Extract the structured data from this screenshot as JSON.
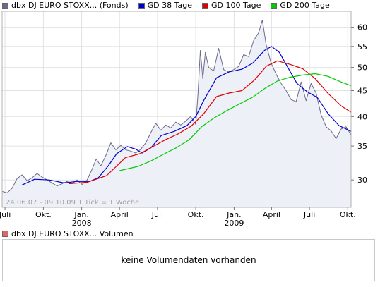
{
  "legend": [
    {
      "label": "dbx DJ EURO STOXX... (Fonds)",
      "color": "#6a6a8a"
    },
    {
      "label": "GD 38 Tage",
      "color": "#0000cc"
    },
    {
      "label": "GD 100 Tage",
      "color": "#dd0000"
    },
    {
      "label": "GD 200 Tage",
      "color": "#00cc00"
    }
  ],
  "chart_info": "24.06.07 - 09.10.09   1 Tick = 1 Woche",
  "volume": {
    "legend_label": "dbx DJ EURO STOXX... Volumen",
    "legend_color": "#dd6666",
    "empty_text": "keine Volumendaten vorhanden"
  },
  "chart_data": {
    "type": "line",
    "x_start": "2007-06-24",
    "x_end": "2009-10-09",
    "x_ticks": [
      {
        "date": "2007-07-01",
        "label": "Juli",
        "year": ""
      },
      {
        "date": "2007-10-01",
        "label": "Okt.",
        "year": ""
      },
      {
        "date": "2008-01-01",
        "label": "Jan.",
        "year": "2008"
      },
      {
        "date": "2008-04-01",
        "label": "April",
        "year": ""
      },
      {
        "date": "2008-07-01",
        "label": "Juli",
        "year": ""
      },
      {
        "date": "2008-10-01",
        "label": "Okt.",
        "year": ""
      },
      {
        "date": "2009-01-01",
        "label": "Jan.",
        "year": "2009"
      },
      {
        "date": "2009-04-01",
        "label": "April",
        "year": ""
      },
      {
        "date": "2009-07-01",
        "label": "Juli",
        "year": ""
      },
      {
        "date": "2009-10-01",
        "label": "Okt.",
        "year": ""
      }
    ],
    "y_scale": "log",
    "y_ticks": [
      30,
      35,
      40,
      45,
      50,
      55,
      60
    ],
    "y_range": [
      26.5,
      64.5
    ],
    "grid": true,
    "legend_position": "top",
    "series": [
      {
        "name": "dbx DJ EURO STOXX... (Fonds)",
        "color": "#6a6a8a",
        "area_fill": "#eef0f8",
        "points": [
          [
            "2007-06-24",
            28.5
          ],
          [
            "2007-07-06",
            28.3
          ],
          [
            "2007-07-18",
            28.9
          ],
          [
            "2007-07-30",
            30.2
          ],
          [
            "2007-08-11",
            30.7
          ],
          [
            "2007-08-23",
            29.9
          ],
          [
            "2007-09-04",
            30.3
          ],
          [
            "2007-09-16",
            30.9
          ],
          [
            "2007-09-28",
            30.4
          ],
          [
            "2007-10-10",
            30.0
          ],
          [
            "2007-10-22",
            29.6
          ],
          [
            "2007-11-03",
            29.2
          ],
          [
            "2007-11-15",
            29.5
          ],
          [
            "2007-11-27",
            29.8
          ],
          [
            "2007-12-09",
            29.5
          ],
          [
            "2007-12-21",
            30.0
          ],
          [
            "2008-01-02",
            29.4
          ],
          [
            "2008-01-14",
            30.0
          ],
          [
            "2008-01-26",
            31.5
          ],
          [
            "2008-02-05",
            33.0
          ],
          [
            "2008-02-16",
            32.0
          ],
          [
            "2008-02-28",
            33.5
          ],
          [
            "2008-03-11",
            35.5
          ],
          [
            "2008-03-23",
            34.4
          ],
          [
            "2008-04-04",
            35.1
          ],
          [
            "2008-04-16",
            34.4
          ],
          [
            "2008-04-28",
            34.2
          ],
          [
            "2008-05-10",
            33.9
          ],
          [
            "2008-05-22",
            34.5
          ],
          [
            "2008-06-03",
            35.5
          ],
          [
            "2008-06-15",
            37.2
          ],
          [
            "2008-06-27",
            38.8
          ],
          [
            "2008-07-09",
            37.6
          ],
          [
            "2008-07-21",
            38.5
          ],
          [
            "2008-08-02",
            38.0
          ],
          [
            "2008-08-14",
            39.0
          ],
          [
            "2008-08-26",
            38.5
          ],
          [
            "2008-09-07",
            39.2
          ],
          [
            "2008-09-19",
            40.0
          ],
          [
            "2008-10-01",
            38.6
          ],
          [
            "2008-10-06",
            44.0
          ],
          [
            "2008-10-12",
            54.0
          ],
          [
            "2008-10-18",
            47.5
          ],
          [
            "2008-10-24",
            53.5
          ],
          [
            "2008-11-01",
            50.0
          ],
          [
            "2008-11-13",
            49.2
          ],
          [
            "2008-11-25",
            54.5
          ],
          [
            "2008-12-07",
            49.5
          ],
          [
            "2008-12-19",
            49.0
          ],
          [
            "2008-12-31",
            49.5
          ],
          [
            "2009-01-12",
            50.2
          ],
          [
            "2009-01-24",
            53.0
          ],
          [
            "2009-02-05",
            52.5
          ],
          [
            "2009-02-17",
            56.5
          ],
          [
            "2009-03-01",
            58.5
          ],
          [
            "2009-03-10",
            62.0
          ],
          [
            "2009-03-19",
            55.5
          ],
          [
            "2009-03-31",
            51.0
          ],
          [
            "2009-04-12",
            48.5
          ],
          [
            "2009-04-24",
            46.5
          ],
          [
            "2009-05-06",
            45.0
          ],
          [
            "2009-05-18",
            43.2
          ],
          [
            "2009-05-30",
            42.8
          ],
          [
            "2009-06-11",
            46.8
          ],
          [
            "2009-06-23",
            43.0
          ],
          [
            "2009-07-05",
            46.5
          ],
          [
            "2009-07-17",
            44.5
          ],
          [
            "2009-07-29",
            40.3
          ],
          [
            "2009-08-10",
            38.2
          ],
          [
            "2009-08-22",
            37.5
          ],
          [
            "2009-09-03",
            36.2
          ],
          [
            "2009-09-15",
            37.8
          ],
          [
            "2009-09-27",
            38.2
          ],
          [
            "2009-10-09",
            36.8
          ]
        ]
      },
      {
        "name": "GD 38 Tage",
        "color": "#0000cc",
        "points": [
          [
            "2007-08-10",
            29.3
          ],
          [
            "2007-09-10",
            30.1
          ],
          [
            "2007-10-15",
            30.0
          ],
          [
            "2007-11-20",
            29.6
          ],
          [
            "2007-12-20",
            29.8
          ],
          [
            "2008-01-20",
            29.8
          ],
          [
            "2008-02-10",
            30.3
          ],
          [
            "2008-03-05",
            32.0
          ],
          [
            "2008-03-25",
            33.8
          ],
          [
            "2008-04-20",
            34.9
          ],
          [
            "2008-05-10",
            34.5
          ],
          [
            "2008-05-25",
            33.9
          ],
          [
            "2008-06-15",
            34.7
          ],
          [
            "2008-07-10",
            36.7
          ],
          [
            "2008-08-10",
            37.4
          ],
          [
            "2008-09-10",
            38.4
          ],
          [
            "2008-10-01",
            40.0
          ],
          [
            "2008-10-20",
            43.0
          ],
          [
            "2008-11-20",
            47.7
          ],
          [
            "2008-12-20",
            49.0
          ],
          [
            "2009-01-20",
            49.6
          ],
          [
            "2009-02-15",
            51.0
          ],
          [
            "2009-03-15",
            54.0
          ],
          [
            "2009-04-01",
            55.0
          ],
          [
            "2009-04-20",
            53.5
          ],
          [
            "2009-05-10",
            50.0
          ],
          [
            "2009-06-01",
            46.5
          ],
          [
            "2009-06-25",
            44.8
          ],
          [
            "2009-07-20",
            43.6
          ],
          [
            "2009-08-15",
            40.5
          ],
          [
            "2009-09-10",
            38.4
          ],
          [
            "2009-10-09",
            37.4
          ]
        ]
      },
      {
        "name": "GD 100 Tage",
        "color": "#dd0000",
        "points": [
          [
            "2007-12-01",
            29.5
          ],
          [
            "2008-01-15",
            29.7
          ],
          [
            "2008-03-01",
            30.6
          ],
          [
            "2008-04-15",
            33.2
          ],
          [
            "2008-05-20",
            33.8
          ],
          [
            "2008-06-20",
            34.9
          ],
          [
            "2008-07-20",
            36.0
          ],
          [
            "2008-08-20",
            37.0
          ],
          [
            "2008-09-20",
            38.3
          ],
          [
            "2008-10-20",
            40.5
          ],
          [
            "2008-11-20",
            43.8
          ],
          [
            "2008-12-20",
            44.5
          ],
          [
            "2009-01-20",
            45.0
          ],
          [
            "2009-02-20",
            47.3
          ],
          [
            "2009-03-20",
            50.3
          ],
          [
            "2009-04-15",
            51.5
          ],
          [
            "2009-05-15",
            50.7
          ],
          [
            "2009-06-15",
            49.7
          ],
          [
            "2009-07-15",
            47.5
          ],
          [
            "2009-08-15",
            44.4
          ],
          [
            "2009-09-15",
            42.0
          ],
          [
            "2009-10-09",
            40.8
          ]
        ]
      },
      {
        "name": "GD 200 Tage",
        "color": "#00cc00",
        "points": [
          [
            "2008-04-01",
            31.3
          ],
          [
            "2008-05-15",
            31.9
          ],
          [
            "2008-06-15",
            32.7
          ],
          [
            "2008-07-15",
            33.7
          ],
          [
            "2008-08-15",
            34.7
          ],
          [
            "2008-09-15",
            36.0
          ],
          [
            "2008-10-15",
            38.2
          ],
          [
            "2008-11-15",
            39.8
          ],
          [
            "2008-12-15",
            41.1
          ],
          [
            "2009-01-15",
            42.4
          ],
          [
            "2009-02-15",
            43.7
          ],
          [
            "2009-03-15",
            45.4
          ],
          [
            "2009-04-15",
            47.0
          ],
          [
            "2009-05-15",
            47.8
          ],
          [
            "2009-06-15",
            48.3
          ],
          [
            "2009-07-15",
            48.6
          ],
          [
            "2009-08-15",
            48.0
          ],
          [
            "2009-09-15",
            46.8
          ],
          [
            "2009-10-09",
            46.0
          ]
        ]
      }
    ]
  }
}
